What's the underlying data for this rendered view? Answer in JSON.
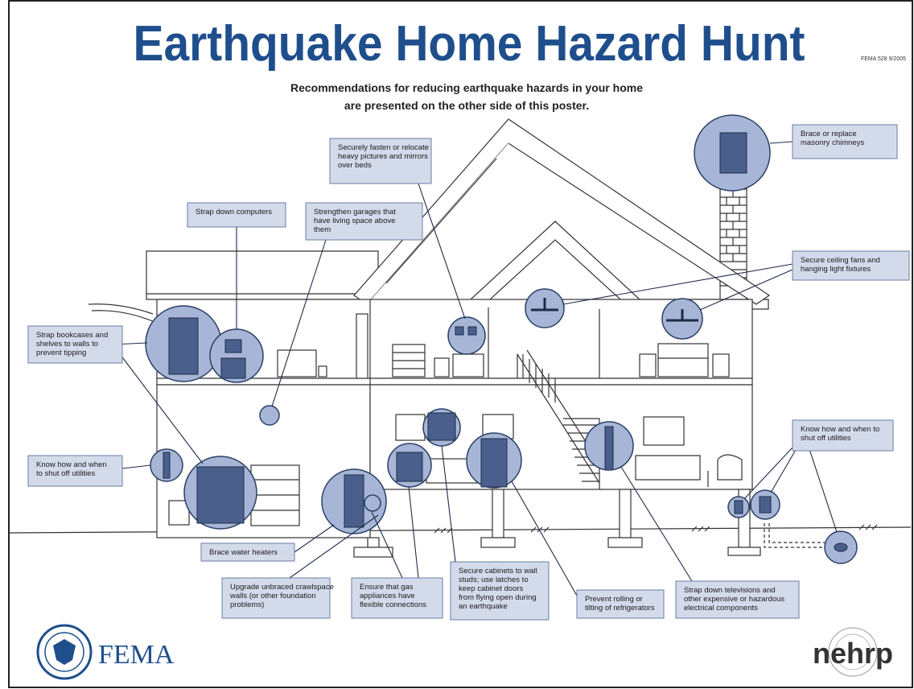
{
  "header": {
    "title": "Earthquake Home Hazard Hunt",
    "code": "FEMA 528 9/2005",
    "subtitle": [
      "Recommendations for reducing earthquake hazards in your home",
      "are presented on the other side of this poster."
    ]
  },
  "callouts": [
    {
      "lines": [
        "Securely fasten or relocate",
        "heavy pictures and mirrors",
        "over beds"
      ]
    },
    {
      "lines": [
        "Brace or replace",
        "masonry chimneys"
      ]
    },
    {
      "lines": [
        "Strap down computers"
      ]
    },
    {
      "lines": [
        "Strengthen garages that",
        "have living space above",
        "them"
      ]
    },
    {
      "lines": [
        "Secure ceiling fans and",
        "hanging light fixtures"
      ]
    },
    {
      "lines": [
        "Strap bookcases and",
        "shelves to walls to",
        "prevent tipping"
      ]
    },
    {
      "lines": [
        "Know how and when",
        "to shut off utilities"
      ]
    },
    {
      "lines": [
        "Know how and when to",
        "shut off utilities"
      ]
    },
    {
      "lines": [
        "Brace water heaters"
      ]
    },
    {
      "lines": [
        "Upgrade unbraced crawlspace",
        "walls (or other foundation",
        "problems)"
      ]
    },
    {
      "lines": [
        "Ensure that gas",
        "appliances have",
        "flexible connections"
      ]
    },
    {
      "lines": [
        "Secure cabinets to wall",
        "studs; use latches to",
        "keep cabinet doors",
        "from flying open during",
        "an earthquake"
      ]
    },
    {
      "lines": [
        "Prevent rolling or",
        "tilting of refrigerators"
      ]
    },
    {
      "lines": [
        "Strap down televisions and",
        "other expensive or hazardous",
        "electrical components"
      ]
    }
  ],
  "logos": {
    "fema": "FEMA",
    "nehrp": "nehrp"
  }
}
